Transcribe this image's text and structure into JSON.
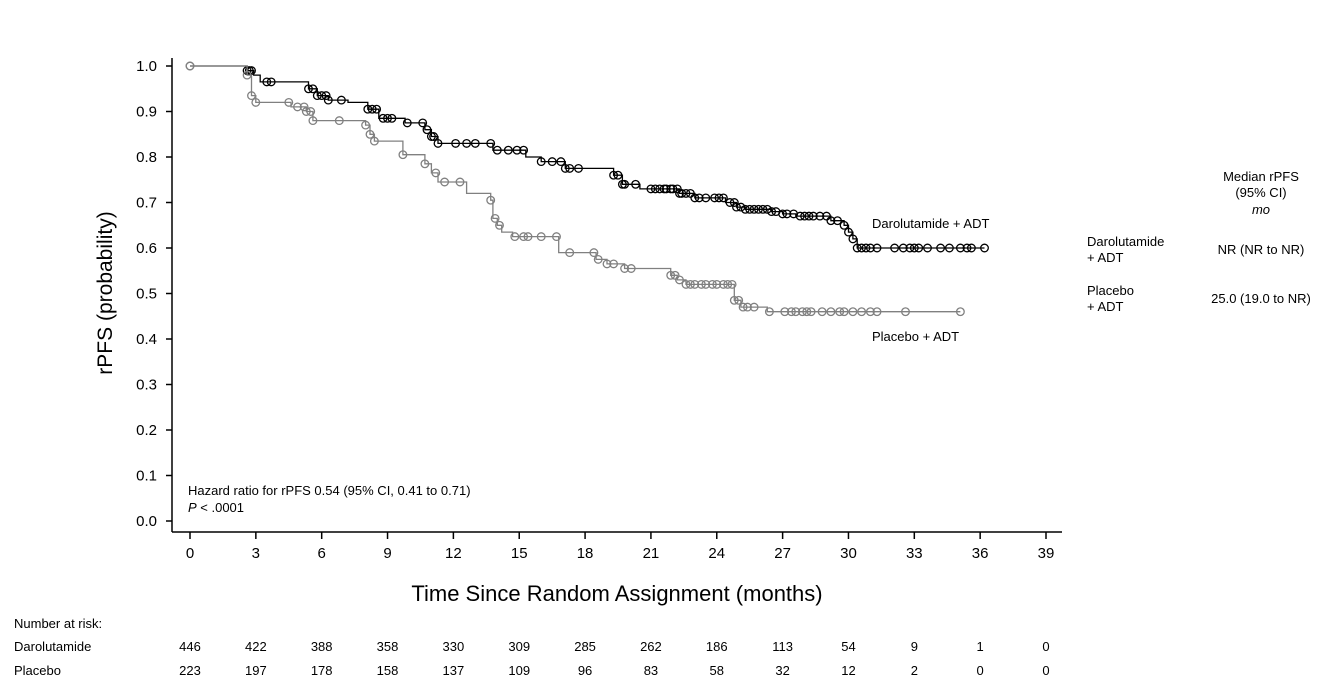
{
  "chart_data": {
    "type": "line",
    "title": "",
    "xlabel": "Time Since Random Assignment (months)",
    "ylabel": "rPFS (probability)",
    "xlim": [
      0,
      39
    ],
    "ylim": [
      0,
      1.0
    ],
    "x_ticks": [
      "0",
      "3",
      "6",
      "9",
      "12",
      "15",
      "18",
      "21",
      "24",
      "27",
      "30",
      "33",
      "36",
      "39"
    ],
    "y_ticks": [
      "0.0",
      "0.1",
      "0.2",
      "0.3",
      "0.4",
      "0.5",
      "0.6",
      "0.7",
      "0.8",
      "0.9",
      "1.0"
    ],
    "series": [
      {
        "name": "Darolutamide + ADT",
        "color": "#000000",
        "steps": [
          [
            0,
            1.0
          ],
          [
            2.6,
            0.99
          ],
          [
            2.9,
            0.98
          ],
          [
            3.2,
            0.965
          ],
          [
            5.4,
            0.95
          ],
          [
            5.8,
            0.935
          ],
          [
            6.3,
            0.925
          ],
          [
            7.2,
            0.92
          ],
          [
            8.1,
            0.905
          ],
          [
            8.6,
            0.885
          ],
          [
            9.8,
            0.875
          ],
          [
            10.7,
            0.86
          ],
          [
            11.0,
            0.845
          ],
          [
            11.3,
            0.83
          ],
          [
            13.8,
            0.815
          ],
          [
            15.3,
            0.8
          ],
          [
            16.0,
            0.79
          ],
          [
            17.1,
            0.775
          ],
          [
            19.3,
            0.76
          ],
          [
            19.7,
            0.74
          ],
          [
            20.5,
            0.73
          ],
          [
            22.3,
            0.72
          ],
          [
            23.0,
            0.71
          ],
          [
            24.4,
            0.7
          ],
          [
            24.9,
            0.69
          ],
          [
            25.3,
            0.685
          ],
          [
            26.5,
            0.68
          ],
          [
            27.0,
            0.675
          ],
          [
            27.6,
            0.67
          ],
          [
            29.2,
            0.66
          ],
          [
            29.8,
            0.65
          ],
          [
            30.0,
            0.635
          ],
          [
            30.2,
            0.62
          ],
          [
            30.4,
            0.6
          ],
          [
            36.2,
            0.6
          ]
        ],
        "censor_x": [
          2.6,
          2.7,
          2.8,
          3.5,
          3.7,
          5.4,
          5.6,
          5.8,
          6.0,
          6.2,
          6.3,
          6.9,
          8.1,
          8.3,
          8.5,
          8.8,
          9.0,
          9.2,
          9.9,
          10.6,
          10.8,
          11.0,
          11.1,
          11.3,
          12.1,
          12.6,
          13.0,
          13.7,
          14.0,
          14.5,
          14.9,
          15.2,
          16.0,
          16.5,
          16.9,
          17.1,
          17.3,
          17.7,
          19.3,
          19.5,
          19.7,
          19.8,
          20.3,
          21.0,
          21.2,
          21.4,
          21.6,
          21.7,
          21.9,
          22.0,
          22.2,
          22.3,
          22.4,
          22.6,
          22.8,
          23.0,
          23.2,
          23.5,
          23.9,
          24.1,
          24.3,
          24.6,
          24.8,
          24.9,
          25.1,
          25.3,
          25.5,
          25.7,
          25.9,
          26.1,
          26.3,
          26.5,
          26.7,
          27.0,
          27.2,
          27.5,
          27.8,
          28.0,
          28.2,
          28.4,
          28.7,
          29.0,
          29.2,
          29.5,
          29.8,
          30.0,
          30.2,
          30.4,
          30.6,
          30.8,
          31.0,
          31.3,
          32.1,
          32.5,
          32.8,
          33.0,
          33.2,
          33.6,
          34.2,
          34.6,
          35.1,
          35.4,
          35.6,
          36.2
        ]
      },
      {
        "name": "Placebo + ADT",
        "color": "#808080",
        "steps": [
          [
            0,
            1.0
          ],
          [
            2.6,
            0.98
          ],
          [
            2.8,
            0.935
          ],
          [
            3.0,
            0.92
          ],
          [
            4.6,
            0.91
          ],
          [
            5.3,
            0.9
          ],
          [
            5.6,
            0.88
          ],
          [
            8.0,
            0.87
          ],
          [
            8.2,
            0.85
          ],
          [
            8.4,
            0.835
          ],
          [
            9.7,
            0.805
          ],
          [
            10.7,
            0.785
          ],
          [
            11.0,
            0.765
          ],
          [
            11.3,
            0.745
          ],
          [
            12.6,
            0.72
          ],
          [
            13.7,
            0.705
          ],
          [
            13.8,
            0.665
          ],
          [
            14.0,
            0.65
          ],
          [
            14.2,
            0.635
          ],
          [
            14.7,
            0.625
          ],
          [
            16.8,
            0.59
          ],
          [
            18.5,
            0.575
          ],
          [
            19.0,
            0.565
          ],
          [
            19.8,
            0.555
          ],
          [
            21.9,
            0.54
          ],
          [
            22.2,
            0.53
          ],
          [
            22.6,
            0.52
          ],
          [
            24.8,
            0.485
          ],
          [
            25.1,
            0.47
          ],
          [
            26.3,
            0.46
          ],
          [
            35.1,
            0.46
          ]
        ],
        "censor_x": [
          2.6,
          2.8,
          3.0,
          4.5,
          4.9,
          5.2,
          5.3,
          5.5,
          5.6,
          6.8,
          8.0,
          8.2,
          8.4,
          9.7,
          10.7,
          11.2,
          11.6,
          12.3,
          13.7,
          13.9,
          14.1,
          14.8,
          15.2,
          15.4,
          16.0,
          16.7,
          17.3,
          18.4,
          18.6,
          19.0,
          19.3,
          19.8,
          20.1,
          21.9,
          22.1,
          22.3,
          22.6,
          22.8,
          23.0,
          23.3,
          23.5,
          23.8,
          24.0,
          24.3,
          24.5,
          24.7,
          24.8,
          25.0,
          25.2,
          25.4,
          25.7,
          26.4,
          27.1,
          27.4,
          27.6,
          27.9,
          28.1,
          28.3,
          28.8,
          29.2,
          29.6,
          29.8,
          30.2,
          30.6,
          31.0,
          31.3,
          32.6,
          35.1
        ]
      }
    ],
    "series_labels": [
      "Darolutamide + ADT",
      "Placebo + ADT"
    ],
    "annotation_hr": "Hazard ratio for rPFS 0.54 (95% CI, 0.41 to 0.71)",
    "annotation_p_italic": "P",
    "annotation_p_rest": " < .0001",
    "median_header": [
      "Median rPFS",
      "(95% CI)"
    ],
    "median_header_unit": "mo",
    "median_rows": [
      {
        "arm_lines": [
          "Darolutamide",
          "+ ADT"
        ],
        "value": "NR (NR to NR)"
      },
      {
        "arm_lines": [
          "Placebo",
          "+ ADT"
        ],
        "value": "25.0 (19.0 to NR)"
      }
    ],
    "risk_table": {
      "title": "Number at risk:",
      "rows": [
        {
          "label": "Darolutamide",
          "counts": [
            "446",
            "422",
            "388",
            "358",
            "330",
            "309",
            "285",
            "262",
            "186",
            "113",
            "54",
            "9",
            "1",
            "0"
          ]
        },
        {
          "label": "Placebo",
          "counts": [
            "223",
            "197",
            "178",
            "158",
            "137",
            "109",
            "96",
            "83",
            "58",
            "32",
            "12",
            "2",
            "0",
            "0"
          ]
        }
      ]
    }
  }
}
